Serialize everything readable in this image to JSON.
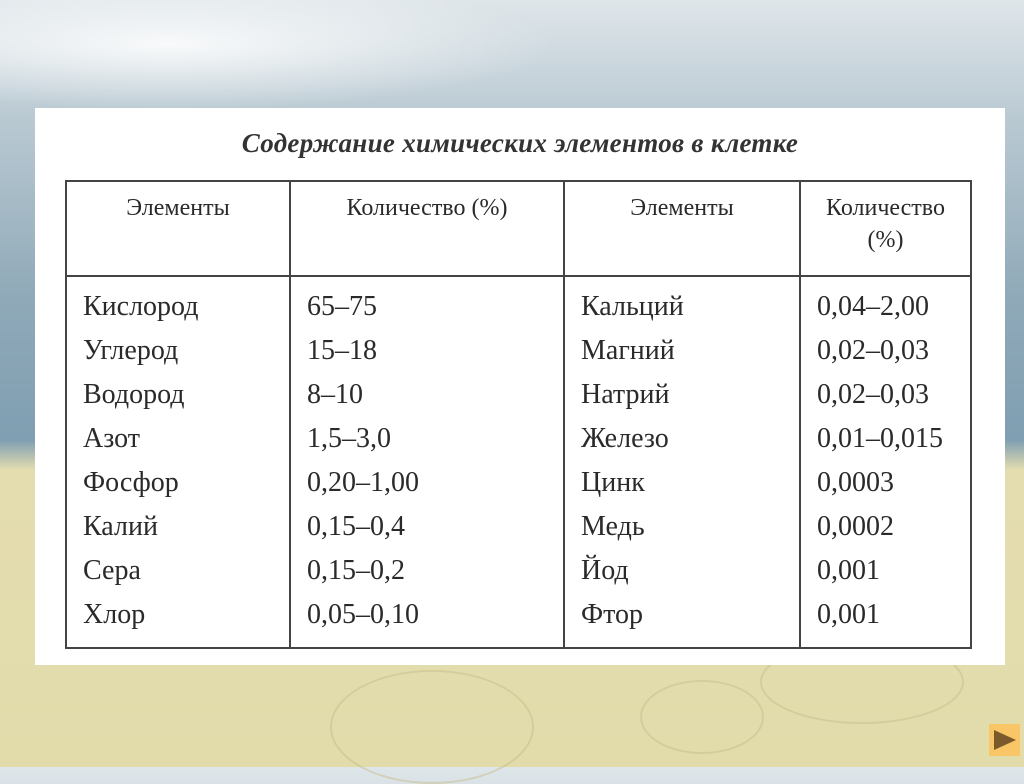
{
  "title": "Содержание химических элементов в клетке",
  "headers": [
    "Элементы",
    "Количество (%)",
    "Элементы",
    "Количество (%)"
  ],
  "rows": [
    [
      "Кислород",
      "65–75",
      "Кальций",
      "0,04–2,00"
    ],
    [
      "Углерод",
      "15–18",
      "Магний",
      "0,02–0,03"
    ],
    [
      "Водород",
      "8–10",
      "Натрий",
      "0,02–0,03"
    ],
    [
      "Азот",
      "1,5–3,0",
      "Железо",
      "0,01–0,015"
    ],
    [
      "Фосфор",
      "0,20–1,00",
      "Цинк",
      "0,0003"
    ],
    [
      "Калий",
      "0,15–0,4",
      "Медь",
      "0,0002"
    ],
    [
      "Сера",
      "0,15–0,2",
      "Йод",
      "0,001"
    ],
    [
      "Хлор",
      "0,05–0,10",
      "Фтор",
      "0,001"
    ]
  ],
  "next_button": {
    "icon": "play-next-icon",
    "color": "#f8c567"
  }
}
